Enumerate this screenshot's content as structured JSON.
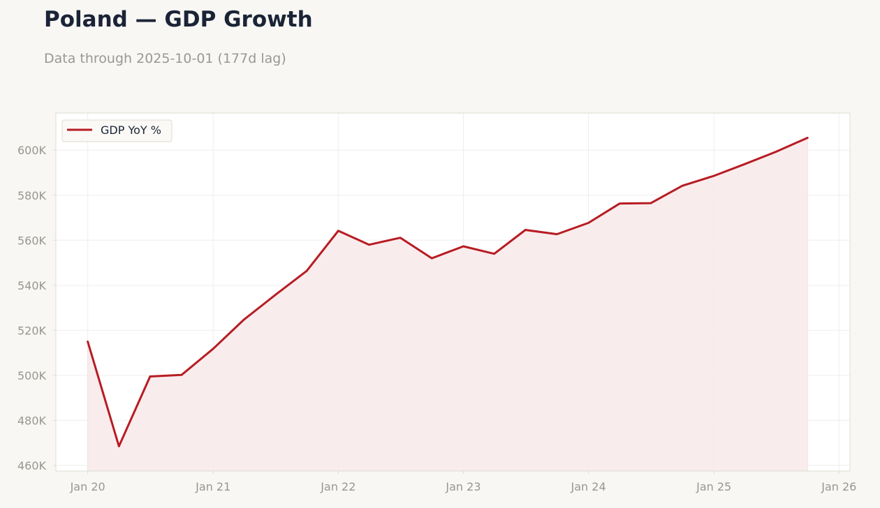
{
  "header": {
    "title": "Poland — GDP Growth",
    "subtitle": "Data through 2025-10-01 (177d lag)"
  },
  "colors": {
    "line": "#b71c22",
    "fill": "#f8e9ea",
    "grid": "#eeeeee",
    "axis_text": "#999690",
    "frame": "#dcdcd4",
    "background": "#f8f7f4",
    "plot_background": "#ffffff"
  },
  "chart_data": {
    "type": "area",
    "title": "Poland — GDP Growth",
    "subtitle": "Data through 2025-10-01 (177d lag)",
    "xlabel": "",
    "ylabel": "",
    "x_tick_labels": [
      "Jan 20",
      "Jan 21",
      "Jan 22",
      "Jan 23",
      "Jan 24",
      "Jan 25",
      "Jan 26"
    ],
    "y_tick_labels": [
      "460K",
      "480K",
      "500K",
      "520K",
      "540K",
      "560K",
      "580K",
      "600K"
    ],
    "y_ticks": [
      460000,
      480000,
      500000,
      520000,
      540000,
      560000,
      580000,
      600000
    ],
    "ylim": [
      457500,
      616500
    ],
    "xlim": [
      "2019-09-30",
      "2026-02-02"
    ],
    "grid": true,
    "legend_position": "top-left",
    "series": [
      {
        "name": "GDP YoY %",
        "x": [
          "2020-01-01",
          "2020-04-01",
          "2020-07-01",
          "2020-10-01",
          "2021-01-01",
          "2021-04-01",
          "2021-07-01",
          "2021-10-01",
          "2022-01-01",
          "2022-04-01",
          "2022-07-01",
          "2022-10-01",
          "2023-01-01",
          "2023-04-01",
          "2023-07-01",
          "2023-10-01",
          "2024-01-01",
          "2024-04-01",
          "2024-07-01",
          "2024-10-01",
          "2025-01-01",
          "2025-04-01",
          "2025-07-01",
          "2025-10-01"
        ],
        "values": [
          515000,
          468500,
          499500,
          500200,
          511800,
          524800,
          535700,
          546400,
          564200,
          558000,
          561100,
          552000,
          557300,
          554000,
          564600,
          562700,
          567700,
          576300,
          576500,
          584200,
          588600,
          593800,
          599300,
          605500
        ]
      }
    ]
  }
}
